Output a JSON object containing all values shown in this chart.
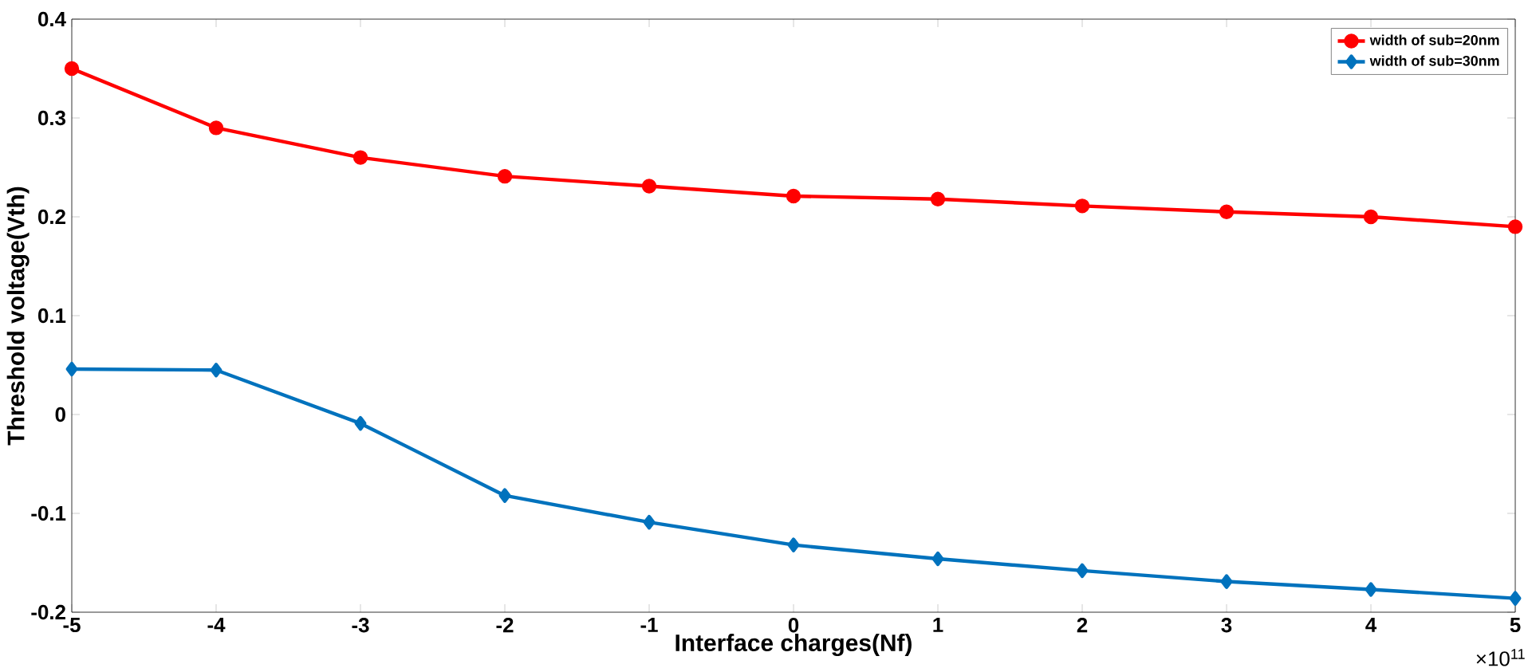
{
  "chart_data": {
    "type": "line",
    "xlabel": "Interface charges(Nf)",
    "ylabel": "Threshold voltage(Vth)",
    "x": [
      -5,
      -4,
      -3,
      -2,
      -1,
      0,
      1,
      2,
      3,
      4,
      5
    ],
    "series": [
      {
        "name": "width of sub=20nm",
        "color": "#ff0000",
        "marker": "circle",
        "values": [
          0.35,
          0.29,
          0.26,
          0.241,
          0.231,
          0.221,
          0.218,
          0.211,
          0.205,
          0.2,
          0.19
        ]
      },
      {
        "name": "width of sub=30nm",
        "color": "#0072bd",
        "marker": "diamond",
        "values": [
          0.046,
          0.045,
          -0.009,
          -0.082,
          -0.109,
          -0.132,
          -0.146,
          -0.158,
          -0.169,
          -0.177,
          -0.186
        ]
      }
    ],
    "xlim": [
      -5,
      5
    ],
    "xticks": [
      -5,
      -4,
      -3,
      -2,
      -1,
      0,
      1,
      2,
      3,
      4,
      5
    ],
    "ylim": [
      -0.2,
      0.4
    ],
    "yticks": [
      -0.2,
      -0.1,
      0,
      0.1,
      0.2,
      0.3,
      0.4
    ],
    "annotations": [
      "×10$^{11}$"
    ],
    "legend": "top right",
    "grid": false,
    "line_style": "solid"
  }
}
